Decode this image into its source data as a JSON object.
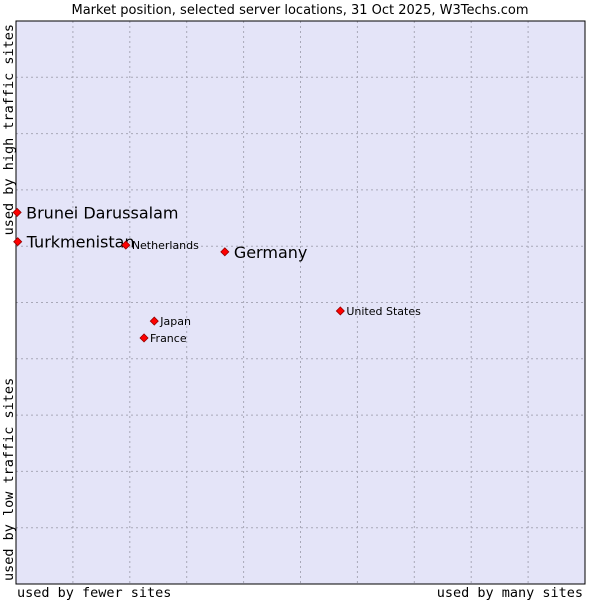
{
  "chart_data": {
    "type": "scatter",
    "title": "Market position, selected server locations, 31 Oct 2025, W3Techs.com",
    "xlabel_left": "used by fewer sites",
    "xlabel_right": "used by many sites",
    "ylabel_bottom": "used by low traffic sites",
    "ylabel_top": "used by high traffic sites",
    "xlim": [
      0,
      10
    ],
    "ylim": [
      0,
      10
    ],
    "grid": true,
    "colors": {
      "plot_background": "#e4e4f8",
      "grid": "#a8a8b8",
      "border": "#000000",
      "marker": "#ff0000",
      "marker_edge": "#990000"
    },
    "points": [
      {
        "label": "Brunei Darussalam",
        "x": 0.02,
        "y": 6.6,
        "size": "large"
      },
      {
        "label": "Turkmenistan",
        "x": 0.03,
        "y": 6.08,
        "size": "large"
      },
      {
        "label": "Netherlands",
        "x": 1.93,
        "y": 6.02,
        "size": "small"
      },
      {
        "label": "Germany",
        "x": 3.67,
        "y": 5.9,
        "size": "large"
      },
      {
        "label": "United States",
        "x": 5.7,
        "y": 4.85,
        "size": "small"
      },
      {
        "label": "Japan",
        "x": 2.43,
        "y": 4.67,
        "size": "small"
      },
      {
        "label": "France",
        "x": 2.25,
        "y": 4.37,
        "size": "small"
      }
    ]
  }
}
